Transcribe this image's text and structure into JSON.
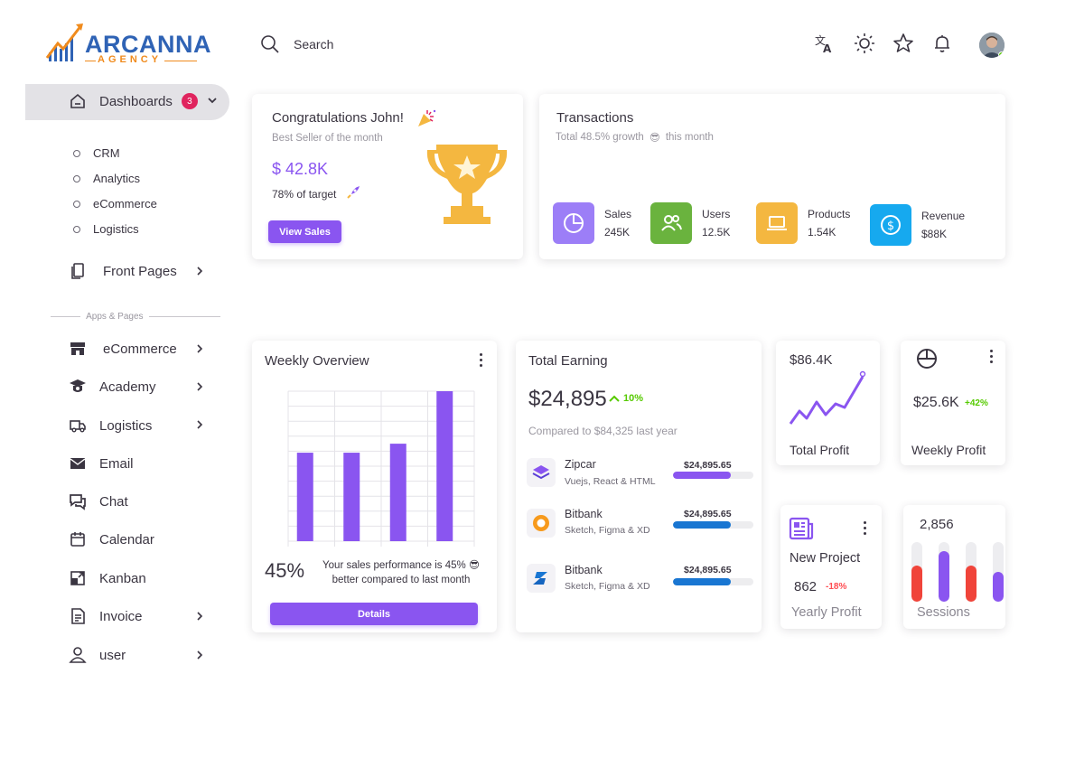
{
  "brand": {
    "name": "ARCANNA",
    "sub": "AGENCY"
  },
  "sidebar": {
    "dashboards": {
      "label": "Dashboards",
      "badge": "3"
    },
    "dashboard_items": [
      "CRM",
      "Analytics",
      "eCommerce",
      "Logistics"
    ],
    "front_pages": "Front Pages",
    "section_label": "Apps & Pages",
    "items": [
      {
        "label": "eCommerce",
        "icon": "store-icon",
        "chevron": true
      },
      {
        "label": "Academy",
        "icon": "graduation-cap-icon",
        "chevron": true
      },
      {
        "label": "Logistics",
        "icon": "truck-icon",
        "chevron": true
      },
      {
        "label": "Email",
        "icon": "mail-icon",
        "chevron": false
      },
      {
        "label": "Chat",
        "icon": "chat-icon",
        "chevron": false
      },
      {
        "label": "Calendar",
        "icon": "calendar-icon",
        "chevron": false
      },
      {
        "label": "Kanban",
        "icon": "kanban-icon",
        "chevron": false
      },
      {
        "label": "Invoice",
        "icon": "invoice-icon",
        "chevron": true
      },
      {
        "label": "user",
        "icon": "user-icon",
        "chevron": true
      }
    ]
  },
  "header": {
    "search_placeholder": "Search"
  },
  "congrats": {
    "title": "Congratulations John!",
    "subtitle": "Best Seller of the month",
    "amount": "$ 42.8K",
    "target": "78% of target",
    "button": "View Sales"
  },
  "transactions": {
    "title": "Transactions",
    "growth": "Total 48.5% growth",
    "period": "this month",
    "stats": [
      {
        "label": "Sales",
        "value": "245K",
        "color": "#9c7ef7",
        "icon": "pie-chart-icon"
      },
      {
        "label": "Users",
        "value": "12.5K",
        "color": "#6ab33e",
        "icon": "users-icon"
      },
      {
        "label": "Products",
        "value": "1.54K",
        "color": "#f4b740",
        "icon": "laptop-icon"
      },
      {
        "label": "Revenue",
        "value": "$88K",
        "color": "#16a9ef",
        "icon": "dollar-icon"
      }
    ]
  },
  "weekly": {
    "title": "Weekly Overview",
    "percent": "45%",
    "text_line1": "Your sales performance is 45% 😎",
    "text_line2": "better compared to last month",
    "button": "Details"
  },
  "chart_data": {
    "type": "bar",
    "categories": [
      "",
      "",
      "",
      ""
    ],
    "values": [
      59,
      59,
      65,
      100
    ],
    "title": "",
    "xlabel": "",
    "ylabel": "",
    "ylim": [
      0,
      100
    ]
  },
  "earning": {
    "title": "Total Earning",
    "amount": "$24,895",
    "change": "10%",
    "compare": "Compared to $84,325 last year",
    "rows": [
      {
        "name": "Zipcar",
        "sub": "Vuejs, React & HTML",
        "amount": "$24,895.65",
        "progress": 0.72,
        "color": "#8a55f0"
      },
      {
        "name": "Bitbank",
        "sub": "Sketch, Figma & XD",
        "amount": "$24,895.65",
        "progress": 0.72,
        "color": "#1976d2"
      },
      {
        "name": "Bitbank",
        "sub": "Sketch, Figma & XD",
        "amount": "$24,895.65",
        "progress": 0.72,
        "color": "#1976d2"
      }
    ]
  },
  "total_profit": {
    "value": "$86.4K",
    "label": "Total Profit"
  },
  "weekly_profit": {
    "value": "$25.6K",
    "change": "+42%",
    "label": "Weekly Profit"
  },
  "new_project": {
    "title": "New Project",
    "value": "862",
    "change": "-18%",
    "label": "Yearly Profit"
  },
  "sessions": {
    "value": "2,856",
    "label": "Sessions",
    "bars": [
      {
        "level": 0.6,
        "color": "#f0443a"
      },
      {
        "level": 0.85,
        "color": "#8a55f0"
      },
      {
        "level": 0.6,
        "color": "#f0443a"
      },
      {
        "level": 0.5,
        "color": "#8a55f0"
      }
    ]
  }
}
